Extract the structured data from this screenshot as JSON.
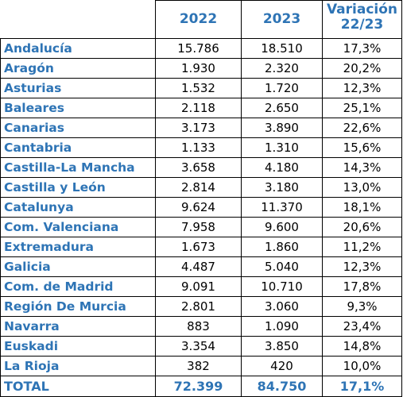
{
  "table": {
    "headers": {
      "col_2022": "2022",
      "col_2023": "2023",
      "col_var_line1": "Variación",
      "col_var_line2": "22/23"
    },
    "rows": [
      {
        "name": "Andalucía",
        "v2022": "15.786",
        "v2023": "18.510",
        "var": "17,3%"
      },
      {
        "name": "Aragón",
        "v2022": "1.930",
        "v2023": "2.320",
        "var": "20,2%"
      },
      {
        "name": "Asturias",
        "v2022": "1.532",
        "v2023": "1.720",
        "var": "12,3%"
      },
      {
        "name": "Baleares",
        "v2022": "2.118",
        "v2023": "2.650",
        "var": "25,1%"
      },
      {
        "name": "Canarias",
        "v2022": "3.173",
        "v2023": "3.890",
        "var": "22,6%"
      },
      {
        "name": "Cantabria",
        "v2022": "1.133",
        "v2023": "1.310",
        "var": "15,6%"
      },
      {
        "name": "Castilla-La Mancha",
        "v2022": "3.658",
        "v2023": "4.180",
        "var": "14,3%"
      },
      {
        "name": "Castilla y León",
        "v2022": "2.814",
        "v2023": "3.180",
        "var": "13,0%"
      },
      {
        "name": "Catalunya",
        "v2022": "9.624",
        "v2023": "11.370",
        "var": "18,1%"
      },
      {
        "name": "Com. Valenciana",
        "v2022": "7.958",
        "v2023": "9.600",
        "var": "20,6%"
      },
      {
        "name": "Extremadura",
        "v2022": "1.673",
        "v2023": "1.860",
        "var": "11,2%"
      },
      {
        "name": "Galicia",
        "v2022": "4.487",
        "v2023": "5.040",
        "var": "12,3%"
      },
      {
        "name": "Com. de Madrid",
        "v2022": "9.091",
        "v2023": "10.710",
        "var": "17,8%"
      },
      {
        "name": "Región De Murcia",
        "v2022": "2.801",
        "v2023": "3.060",
        "var": "9,3%"
      },
      {
        "name": "Navarra",
        "v2022": "883",
        "v2023": "1.090",
        "var": "23,4%"
      },
      {
        "name": "Euskadi",
        "v2022": "3.354",
        "v2023": "3.850",
        "var": "14,8%"
      },
      {
        "name": "La Rioja",
        "v2022": "382",
        "v2023": "420",
        "var": "10,0%"
      }
    ],
    "total": {
      "name": "TOTAL",
      "v2022": "72.399",
      "v2023": "84.750",
      "var": "17,1%"
    }
  },
  "colors": {
    "header_text": "#2e74b5",
    "region_text": "#2e74b5",
    "value_text": "#000000",
    "border": "#000000"
  }
}
